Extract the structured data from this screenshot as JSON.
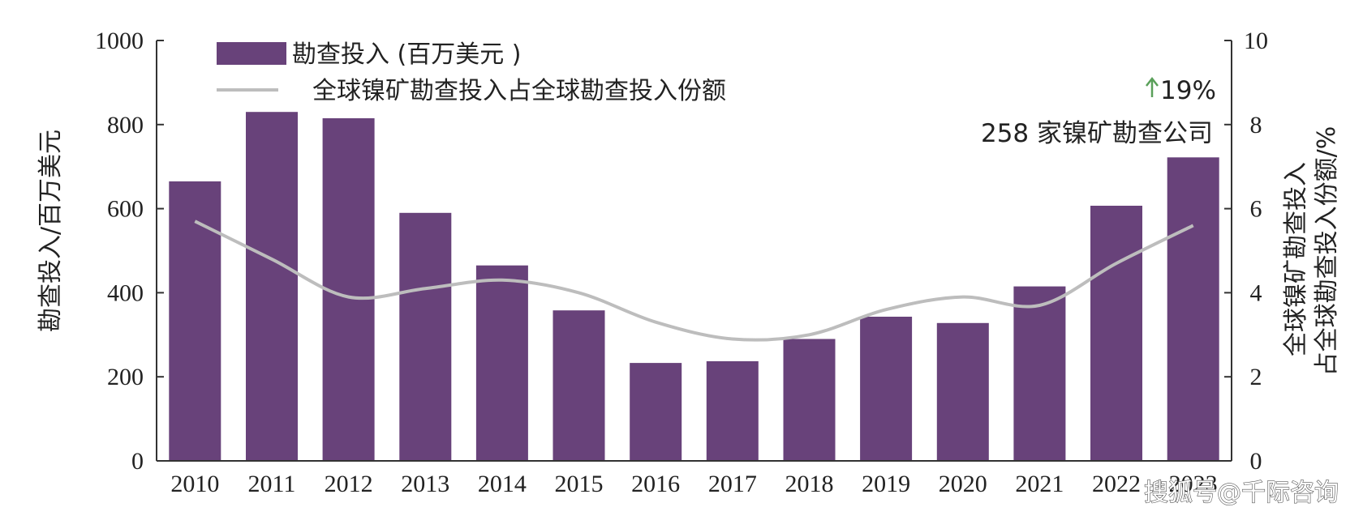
{
  "chart_data": {
    "type": "bar",
    "categories": [
      "2010",
      "2011",
      "2012",
      "2013",
      "2014",
      "2015",
      "2016",
      "2017",
      "2018",
      "2019",
      "2020",
      "2021",
      "2022",
      "2023"
    ],
    "series": [
      {
        "name": "勘查投入 (百万美元 )",
        "type": "bar",
        "axis": "left",
        "values": [
          665,
          830,
          815,
          590,
          465,
          358,
          233,
          237,
          290,
          343,
          328,
          415,
          607,
          722
        ]
      },
      {
        "name": "全球镍矿勘查投入占全球勘查投入份额",
        "type": "line",
        "axis": "right",
        "values": [
          5.7,
          4.8,
          3.9,
          4.1,
          4.3,
          4.0,
          3.3,
          2.9,
          3.0,
          3.6,
          3.9,
          3.7,
          4.7,
          5.6
        ]
      }
    ],
    "ylabel": "勘查投入/百万美元",
    "y2label_line1": "全球镍矿勘查投入",
    "y2label_line2": "占全球勘查投入份额/%",
    "ylim": [
      0,
      1000
    ],
    "y2lim": [
      0,
      10
    ],
    "yticks": [
      0,
      200,
      400,
      600,
      800,
      1000
    ],
    "y2ticks": [
      0,
      2,
      4,
      6,
      8,
      10
    ],
    "legend_position": "top-left",
    "grid": false,
    "colors": {
      "bar": "#68427a",
      "line": "#bdbdbd",
      "arrow": "#5aa05a"
    },
    "annotations": {
      "growth": "19%",
      "companies": "258 家镍矿勘查公司"
    },
    "watermark": "搜狐号@千际咨询"
  }
}
